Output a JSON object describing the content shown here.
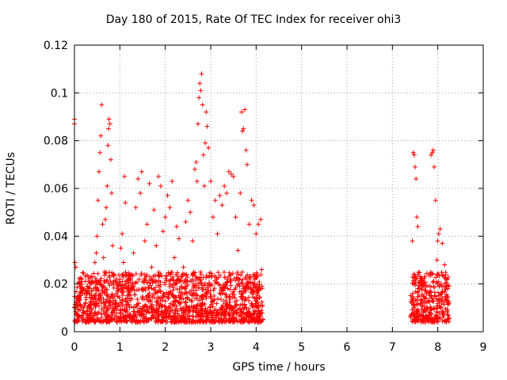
{
  "chart_data": {
    "type": "scatter",
    "title": "Day 180 of 2015, Rate Of TEC Index for receiver ohi3",
    "xlabel": "GPS time / hours",
    "ylabel": "ROTI / TECUs",
    "xlim": [
      0,
      9
    ],
    "ylim": [
      0,
      0.12
    ],
    "xticks": [
      0,
      1,
      2,
      3,
      4,
      5,
      6,
      7,
      8,
      9
    ],
    "xtick_labels": [
      "0",
      "1",
      "2",
      "3",
      "4",
      "5",
      "6",
      "7",
      "8",
      "9"
    ],
    "yticks": [
      0,
      0.02,
      0.04,
      0.06,
      0.08,
      0.1,
      0.12
    ],
    "ytick_labels": [
      "0",
      "0.02",
      "0.04",
      "0.06",
      "0.08",
      "0.1",
      "0.12"
    ],
    "grid": true,
    "marker": "+",
    "color": "#ff0000",
    "series": [
      {
        "name": "ROTI",
        "points": [
          [
            0.0,
            0.089
          ],
          [
            0.0,
            0.087
          ],
          [
            0.01,
            0.029
          ],
          [
            0.03,
            0.027
          ],
          [
            0.05,
            0.011
          ],
          [
            0.08,
            0.015
          ],
          [
            0.1,
            0.013
          ],
          [
            0.12,
            0.009
          ],
          [
            0.15,
            0.021
          ],
          [
            0.18,
            0.016
          ],
          [
            0.2,
            0.01
          ],
          [
            0.24,
            0.012
          ],
          [
            0.28,
            0.019
          ],
          [
            0.31,
            0.023
          ],
          [
            0.34,
            0.011
          ],
          [
            0.38,
            0.014
          ],
          [
            0.42,
            0.018
          ],
          [
            0.45,
            0.029
          ],
          [
            0.48,
            0.033
          ],
          [
            0.5,
            0.04
          ],
          [
            0.52,
            0.055
          ],
          [
            0.54,
            0.067
          ],
          [
            0.56,
            0.075
          ],
          [
            0.58,
            0.082
          ],
          [
            0.6,
            0.095
          ],
          [
            0.62,
            0.045
          ],
          [
            0.64,
            0.031
          ],
          [
            0.66,
            0.025
          ],
          [
            0.68,
            0.047
          ],
          [
            0.7,
            0.052
          ],
          [
            0.72,
            0.061
          ],
          [
            0.74,
            0.078
          ],
          [
            0.75,
            0.085
          ],
          [
            0.76,
            0.089
          ],
          [
            0.78,
            0.087
          ],
          [
            0.8,
            0.072
          ],
          [
            0.82,
            0.058
          ],
          [
            0.84,
            0.036
          ],
          [
            0.86,
            0.021
          ],
          [
            0.88,
            0.015
          ],
          [
            0.9,
            0.013
          ],
          [
            0.95,
            0.017
          ],
          [
            1.0,
            0.022
          ],
          [
            1.02,
            0.035
          ],
          [
            1.05,
            0.041
          ],
          [
            1.08,
            0.029
          ],
          [
            1.1,
            0.065
          ],
          [
            1.12,
            0.054
          ],
          [
            1.15,
            0.018
          ],
          [
            1.2,
            0.014
          ],
          [
            1.25,
            0.024
          ],
          [
            1.3,
            0.033
          ],
          [
            1.35,
            0.052
          ],
          [
            1.4,
            0.064
          ],
          [
            1.45,
            0.058
          ],
          [
            1.48,
            0.067
          ],
          [
            1.5,
            0.021
          ],
          [
            1.55,
            0.038
          ],
          [
            1.6,
            0.045
          ],
          [
            1.65,
            0.062
          ],
          [
            1.7,
            0.027
          ],
          [
            1.75,
            0.051
          ],
          [
            1.8,
            0.036
          ],
          [
            1.85,
            0.065
          ],
          [
            1.9,
            0.061
          ],
          [
            1.95,
            0.042
          ],
          [
            2.0,
            0.048
          ],
          [
            2.05,
            0.057
          ],
          [
            2.1,
            0.052
          ],
          [
            2.15,
            0.063
          ],
          [
            2.2,
            0.031
          ],
          [
            2.25,
            0.044
          ],
          [
            2.3,
            0.039
          ],
          [
            2.35,
            0.019
          ],
          [
            2.4,
            0.027
          ],
          [
            2.45,
            0.046
          ],
          [
            2.5,
            0.055
          ],
          [
            2.55,
            0.05
          ],
          [
            2.6,
            0.038
          ],
          [
            2.65,
            0.068
          ],
          [
            2.68,
            0.071
          ],
          [
            2.7,
            0.063
          ],
          [
            2.72,
            0.087
          ],
          [
            2.74,
            0.098
          ],
          [
            2.76,
            0.104
          ],
          [
            2.78,
            0.101
          ],
          [
            2.8,
            0.108
          ],
          [
            2.82,
            0.095
          ],
          [
            2.84,
            0.074
          ],
          [
            2.86,
            0.061
          ],
          [
            2.88,
            0.079
          ],
          [
            2.9,
            0.092
          ],
          [
            2.92,
            0.086
          ],
          [
            2.95,
            0.077
          ],
          [
            3.0,
            0.063
          ],
          [
            3.05,
            0.048
          ],
          [
            3.1,
            0.055
          ],
          [
            3.15,
            0.041
          ],
          [
            3.2,
            0.057
          ],
          [
            3.25,
            0.053
          ],
          [
            3.3,
            0.061
          ],
          [
            3.35,
            0.058
          ],
          [
            3.4,
            0.067
          ],
          [
            3.45,
            0.066
          ],
          [
            3.5,
            0.065
          ],
          [
            3.55,
            0.048
          ],
          [
            3.6,
            0.034
          ],
          [
            3.65,
            0.058
          ],
          [
            3.68,
            0.092
          ],
          [
            3.7,
            0.084
          ],
          [
            3.72,
            0.085
          ],
          [
            3.75,
            0.093
          ],
          [
            3.78,
            0.076
          ],
          [
            3.8,
            0.07
          ],
          [
            3.85,
            0.045
          ],
          [
            3.9,
            0.055
          ],
          [
            3.95,
            0.053
          ],
          [
            4.0,
            0.041
          ],
          [
            4.05,
            0.045
          ],
          [
            4.1,
            0.047
          ],
          [
            4.12,
            0.026
          ],
          [
            4.14,
            0.011
          ],
          [
            4.15,
            0.005
          ],
          [
            7.4,
            0.006
          ],
          [
            7.42,
            0.012
          ],
          [
            7.44,
            0.038
          ],
          [
            7.46,
            0.075
          ],
          [
            7.48,
            0.074
          ],
          [
            7.5,
            0.069
          ],
          [
            7.52,
            0.064
          ],
          [
            7.54,
            0.048
          ],
          [
            7.56,
            0.044
          ],
          [
            7.58,
            0.025
          ],
          [
            7.6,
            0.018
          ],
          [
            7.65,
            0.013
          ],
          [
            7.7,
            0.009
          ],
          [
            7.75,
            0.016
          ],
          [
            7.8,
            0.013
          ],
          [
            7.85,
            0.074
          ],
          [
            7.88,
            0.075
          ],
          [
            7.9,
            0.076
          ],
          [
            7.92,
            0.069
          ],
          [
            7.95,
            0.055
          ],
          [
            7.98,
            0.03
          ],
          [
            8.0,
            0.038
          ],
          [
            8.02,
            0.041
          ],
          [
            8.05,
            0.043
          ],
          [
            8.1,
            0.037
          ],
          [
            8.15,
            0.028
          ],
          [
            8.2,
            0.022
          ],
          [
            8.22,
            0.018
          ],
          [
            8.25,
            0.012
          ]
        ]
      }
    ],
    "dense_bands": [
      {
        "x_range": [
          0.0,
          4.15
        ],
        "y_range": [
          0.004,
          0.025
        ],
        "note": "dense cluster of low ROTI values"
      },
      {
        "x_range": [
          7.4,
          8.25
        ],
        "y_range": [
          0.004,
          0.025
        ],
        "note": "dense cluster of low ROTI values"
      }
    ]
  }
}
